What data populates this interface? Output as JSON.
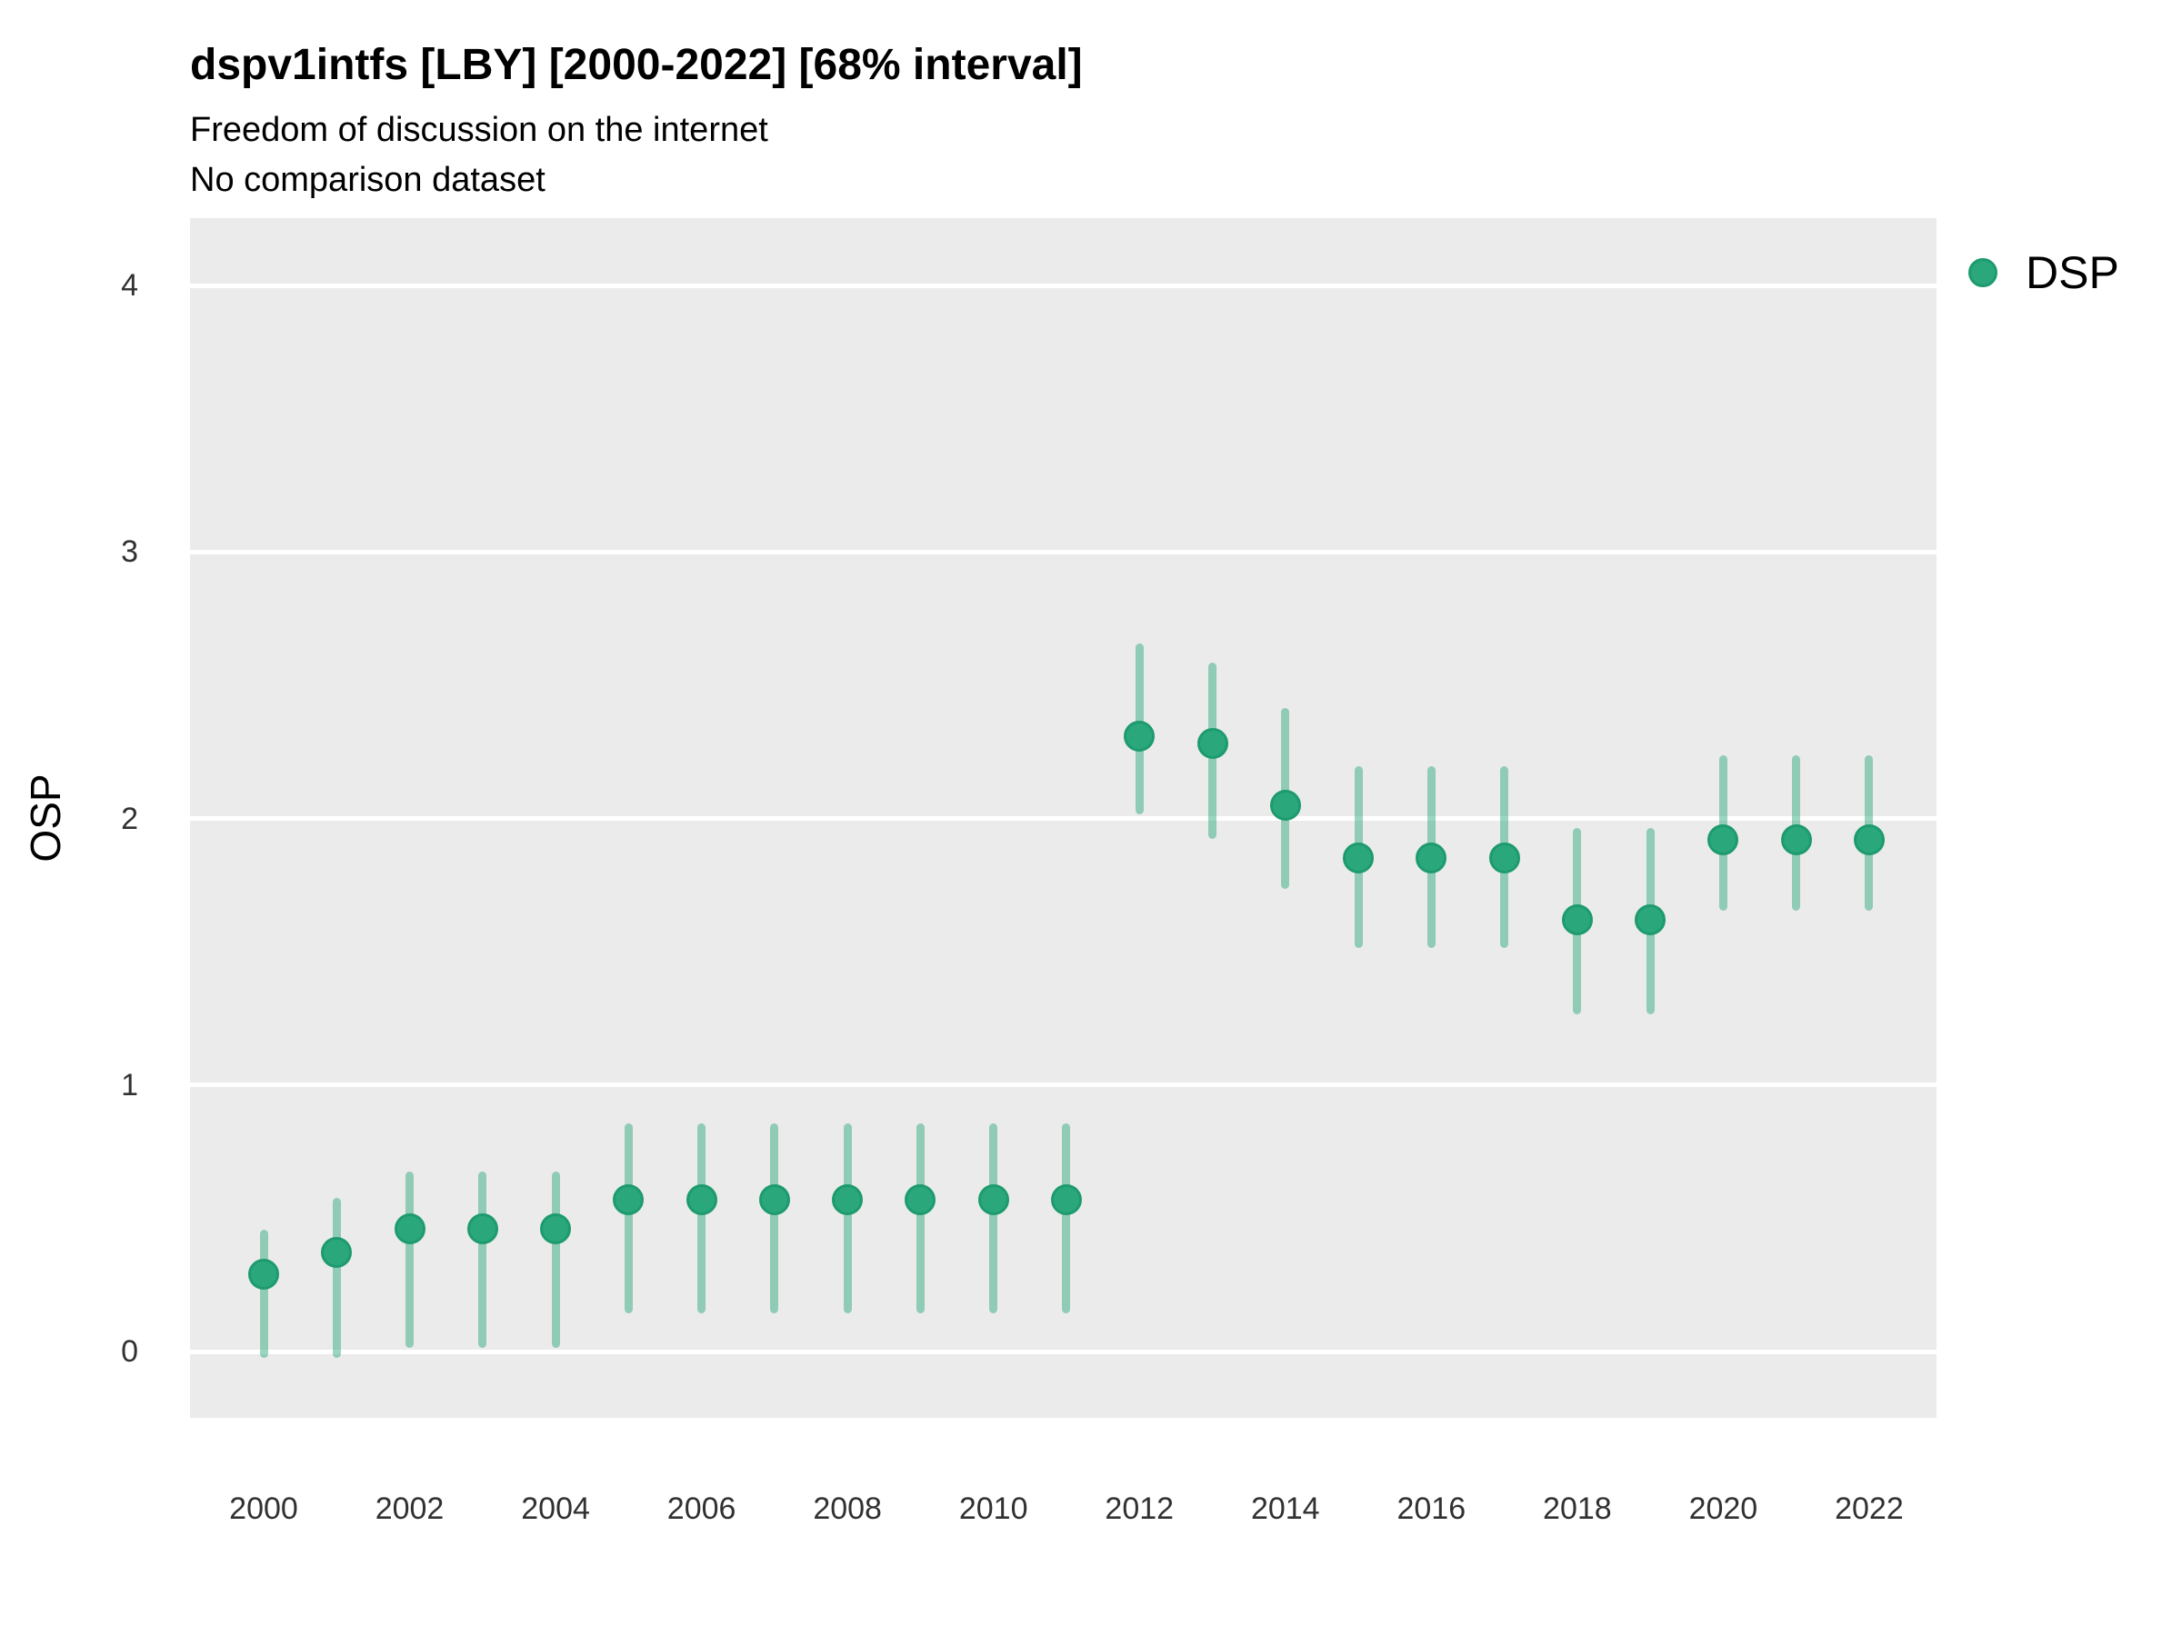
{
  "header": {
    "title": "dspv1intfs [LBY] [2000-2022] [68% interval]",
    "subtitle_line1": "Freedom of discussion on the internet",
    "subtitle_line2": "No comparison dataset"
  },
  "legend": {
    "label": "DSP"
  },
  "axes": {
    "y_label": "OSP",
    "y_ticks": [
      4,
      3,
      2,
      1,
      0
    ],
    "x_ticks": [
      2000,
      2002,
      2004,
      2006,
      2008,
      2010,
      2012,
      2014,
      2016,
      2018,
      2020,
      2022
    ]
  },
  "colors": {
    "point_fill": "#2aa87c",
    "point_border": "#1e9b6e",
    "interval_bar": "rgba(42,168,124,0.47)",
    "panel_background": "#ebebeb",
    "gridline": "#ffffff"
  },
  "chart_data": {
    "type": "scatter",
    "title": "dspv1intfs [LBY] [2000-2022] [68% interval]",
    "subtitle": "Freedom of discussion on the internet",
    "note": "No comparison dataset",
    "series_name": "DSP",
    "interval_level": "68%",
    "xlabel": "",
    "ylabel": "OSP",
    "ylim": [
      -0.25,
      4.25
    ],
    "grid": "major horizontal only",
    "legend_position": "right-top",
    "x": [
      2000,
      2001,
      2002,
      2003,
      2004,
      2005,
      2006,
      2007,
      2008,
      2009,
      2010,
      2011,
      2012,
      2013,
      2014,
      2015,
      2016,
      2017,
      2018,
      2019,
      2020,
      2021,
      2022
    ],
    "estimate": [
      0.29,
      0.37,
      0.46,
      0.46,
      0.46,
      0.57,
      0.57,
      0.57,
      0.57,
      0.57,
      0.57,
      0.57,
      2.31,
      2.28,
      2.05,
      1.85,
      1.85,
      1.85,
      1.62,
      1.62,
      1.92,
      1.92,
      1.92
    ],
    "lower": [
      -0.01,
      -0.01,
      0.03,
      0.03,
      0.03,
      0.16,
      0.16,
      0.16,
      0.16,
      0.16,
      0.16,
      0.16,
      2.03,
      1.94,
      1.75,
      1.53,
      1.53,
      1.53,
      1.28,
      1.28,
      1.67,
      1.67,
      1.67
    ],
    "upper": [
      0.44,
      0.56,
      0.66,
      0.66,
      0.66,
      0.84,
      0.84,
      0.84,
      0.84,
      0.84,
      0.84,
      0.84,
      2.64,
      2.57,
      2.4,
      2.18,
      2.18,
      2.18,
      1.95,
      1.95,
      2.22,
      2.22,
      2.22
    ]
  }
}
